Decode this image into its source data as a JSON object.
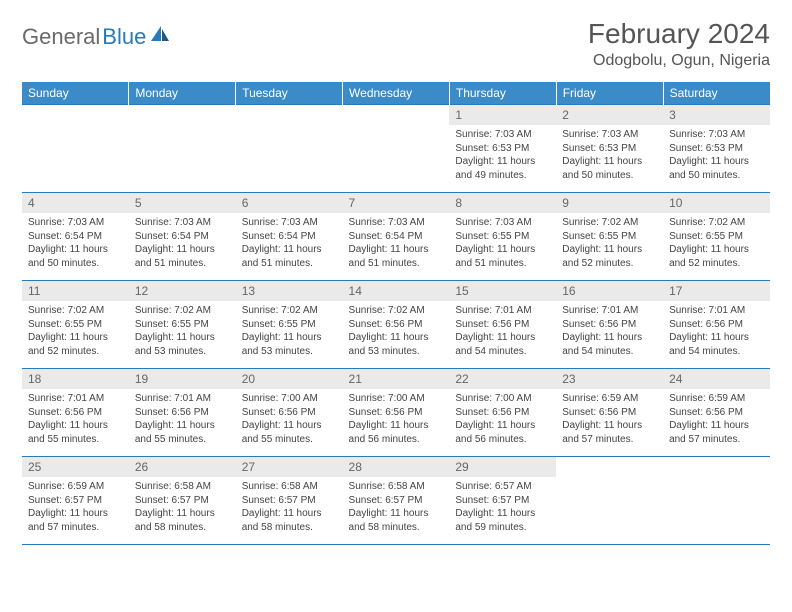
{
  "brand": {
    "part1": "General",
    "part2": "Blue",
    "color1": "#6a6a6a",
    "color2": "#2a7ab9"
  },
  "title": "February 2024",
  "location": "Odogbolu, Ogun, Nigeria",
  "header_bg": "#3b8bc8",
  "daynum_bg": "#eaeaea",
  "border_color": "#2a7ab9",
  "weekdays": [
    "Sunday",
    "Monday",
    "Tuesday",
    "Wednesday",
    "Thursday",
    "Friday",
    "Saturday"
  ],
  "weeks": [
    [
      {
        "n": "",
        "t": ""
      },
      {
        "n": "",
        "t": ""
      },
      {
        "n": "",
        "t": ""
      },
      {
        "n": "",
        "t": ""
      },
      {
        "n": "1",
        "t": "Sunrise: 7:03 AM\nSunset: 6:53 PM\nDaylight: 11 hours and 49 minutes."
      },
      {
        "n": "2",
        "t": "Sunrise: 7:03 AM\nSunset: 6:53 PM\nDaylight: 11 hours and 50 minutes."
      },
      {
        "n": "3",
        "t": "Sunrise: 7:03 AM\nSunset: 6:53 PM\nDaylight: 11 hours and 50 minutes."
      }
    ],
    [
      {
        "n": "4",
        "t": "Sunrise: 7:03 AM\nSunset: 6:54 PM\nDaylight: 11 hours and 50 minutes."
      },
      {
        "n": "5",
        "t": "Sunrise: 7:03 AM\nSunset: 6:54 PM\nDaylight: 11 hours and 51 minutes."
      },
      {
        "n": "6",
        "t": "Sunrise: 7:03 AM\nSunset: 6:54 PM\nDaylight: 11 hours and 51 minutes."
      },
      {
        "n": "7",
        "t": "Sunrise: 7:03 AM\nSunset: 6:54 PM\nDaylight: 11 hours and 51 minutes."
      },
      {
        "n": "8",
        "t": "Sunrise: 7:03 AM\nSunset: 6:55 PM\nDaylight: 11 hours and 51 minutes."
      },
      {
        "n": "9",
        "t": "Sunrise: 7:02 AM\nSunset: 6:55 PM\nDaylight: 11 hours and 52 minutes."
      },
      {
        "n": "10",
        "t": "Sunrise: 7:02 AM\nSunset: 6:55 PM\nDaylight: 11 hours and 52 minutes."
      }
    ],
    [
      {
        "n": "11",
        "t": "Sunrise: 7:02 AM\nSunset: 6:55 PM\nDaylight: 11 hours and 52 minutes."
      },
      {
        "n": "12",
        "t": "Sunrise: 7:02 AM\nSunset: 6:55 PM\nDaylight: 11 hours and 53 minutes."
      },
      {
        "n": "13",
        "t": "Sunrise: 7:02 AM\nSunset: 6:55 PM\nDaylight: 11 hours and 53 minutes."
      },
      {
        "n": "14",
        "t": "Sunrise: 7:02 AM\nSunset: 6:56 PM\nDaylight: 11 hours and 53 minutes."
      },
      {
        "n": "15",
        "t": "Sunrise: 7:01 AM\nSunset: 6:56 PM\nDaylight: 11 hours and 54 minutes."
      },
      {
        "n": "16",
        "t": "Sunrise: 7:01 AM\nSunset: 6:56 PM\nDaylight: 11 hours and 54 minutes."
      },
      {
        "n": "17",
        "t": "Sunrise: 7:01 AM\nSunset: 6:56 PM\nDaylight: 11 hours and 54 minutes."
      }
    ],
    [
      {
        "n": "18",
        "t": "Sunrise: 7:01 AM\nSunset: 6:56 PM\nDaylight: 11 hours and 55 minutes."
      },
      {
        "n": "19",
        "t": "Sunrise: 7:01 AM\nSunset: 6:56 PM\nDaylight: 11 hours and 55 minutes."
      },
      {
        "n": "20",
        "t": "Sunrise: 7:00 AM\nSunset: 6:56 PM\nDaylight: 11 hours and 55 minutes."
      },
      {
        "n": "21",
        "t": "Sunrise: 7:00 AM\nSunset: 6:56 PM\nDaylight: 11 hours and 56 minutes."
      },
      {
        "n": "22",
        "t": "Sunrise: 7:00 AM\nSunset: 6:56 PM\nDaylight: 11 hours and 56 minutes."
      },
      {
        "n": "23",
        "t": "Sunrise: 6:59 AM\nSunset: 6:56 PM\nDaylight: 11 hours and 57 minutes."
      },
      {
        "n": "24",
        "t": "Sunrise: 6:59 AM\nSunset: 6:56 PM\nDaylight: 11 hours and 57 minutes."
      }
    ],
    [
      {
        "n": "25",
        "t": "Sunrise: 6:59 AM\nSunset: 6:57 PM\nDaylight: 11 hours and 57 minutes."
      },
      {
        "n": "26",
        "t": "Sunrise: 6:58 AM\nSunset: 6:57 PM\nDaylight: 11 hours and 58 minutes."
      },
      {
        "n": "27",
        "t": "Sunrise: 6:58 AM\nSunset: 6:57 PM\nDaylight: 11 hours and 58 minutes."
      },
      {
        "n": "28",
        "t": "Sunrise: 6:58 AM\nSunset: 6:57 PM\nDaylight: 11 hours and 58 minutes."
      },
      {
        "n": "29",
        "t": "Sunrise: 6:57 AM\nSunset: 6:57 PM\nDaylight: 11 hours and 59 minutes."
      },
      {
        "n": "",
        "t": ""
      },
      {
        "n": "",
        "t": ""
      }
    ]
  ]
}
